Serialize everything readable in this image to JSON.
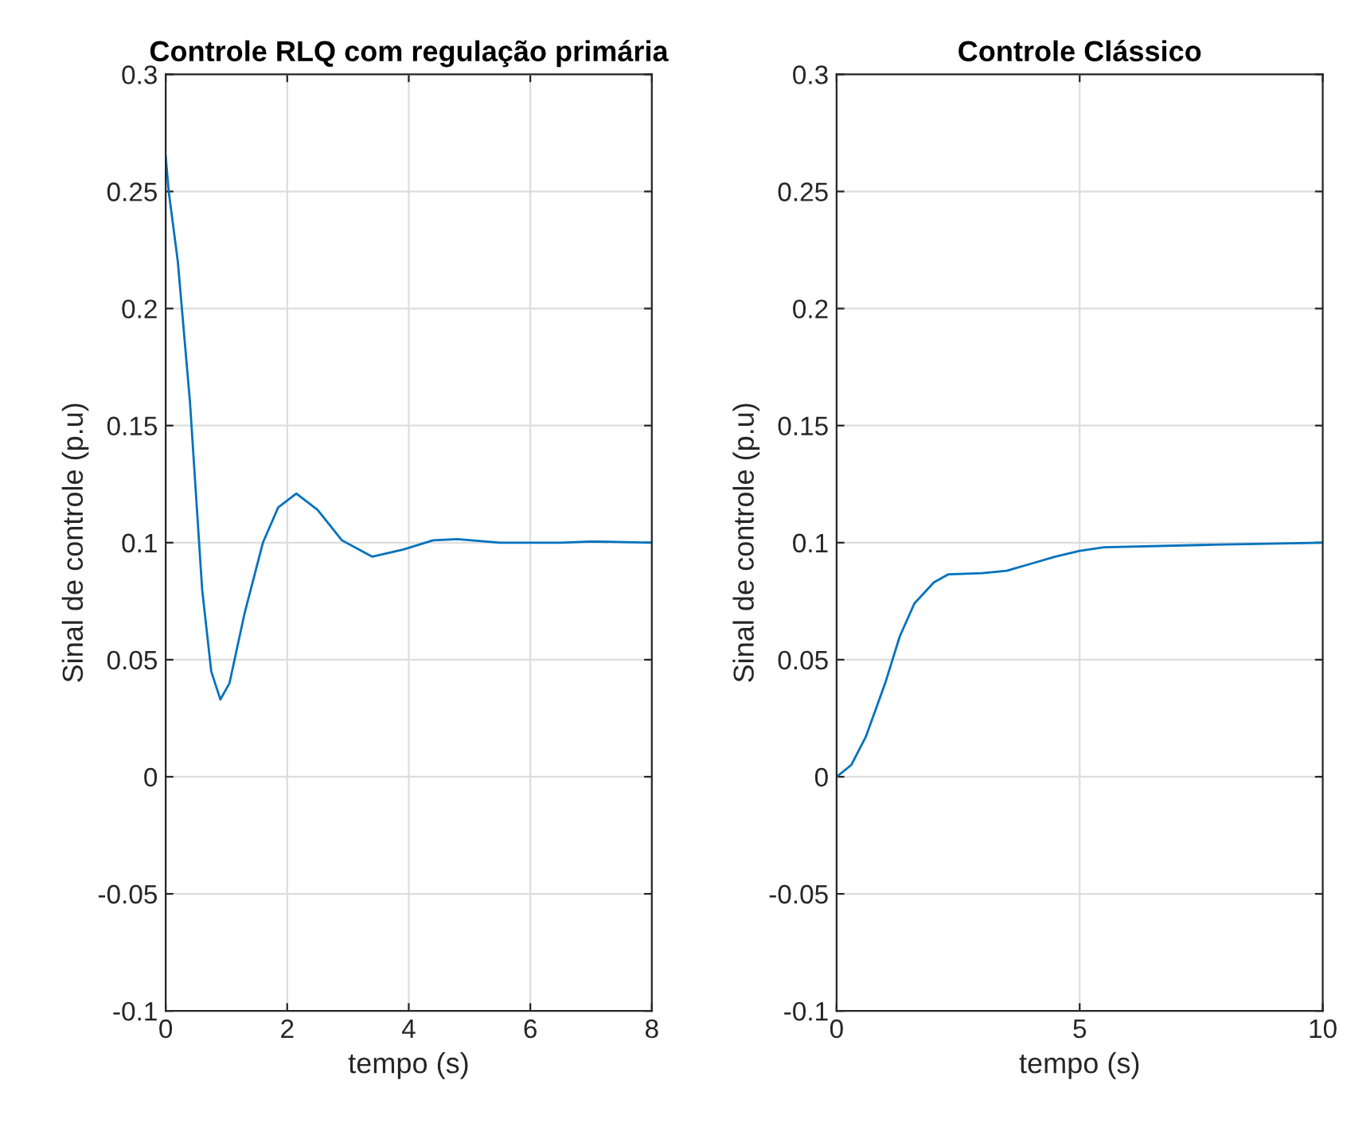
{
  "chart_data": [
    {
      "type": "line",
      "title": "Controle RLQ com regulação primária",
      "xlabel": "tempo (s)",
      "ylabel": "Sinal de controle (p.u)",
      "xlim": [
        0,
        8
      ],
      "xticks": [
        0,
        2,
        4,
        6,
        8
      ],
      "ylim": [
        -0.1,
        0.3
      ],
      "yticks": [
        -0.1,
        -0.05,
        0,
        0.05,
        0.1,
        0.15,
        0.2,
        0.25,
        0.3
      ],
      "grid": true,
      "series": [
        {
          "color": "#0072bd",
          "x": [
            0,
            0.05,
            0.2,
            0.4,
            0.6,
            0.75,
            0.9,
            1.05,
            1.3,
            1.6,
            1.85,
            2.15,
            2.5,
            2.9,
            3.4,
            3.9,
            4.4,
            4.8,
            5.5,
            6.5,
            7,
            8
          ],
          "values": [
            0.265,
            0.25,
            0.22,
            0.16,
            0.08,
            0.045,
            0.033,
            0.04,
            0.07,
            0.1,
            0.115,
            0.121,
            0.114,
            0.101,
            0.094,
            0.097,
            0.101,
            0.1015,
            0.1,
            0.1,
            0.1005,
            0.1
          ]
        }
      ]
    },
    {
      "type": "line",
      "title": "Controle Clássico",
      "xlabel": "tempo (s)",
      "ylabel": "Sinal de controle (p.u)",
      "xlim": [
        0,
        10
      ],
      "xticks": [
        0,
        5,
        10
      ],
      "ylim": [
        -0.1,
        0.3
      ],
      "yticks": [
        -0.1,
        -0.05,
        0,
        0.05,
        0.1,
        0.15,
        0.2,
        0.25,
        0.3
      ],
      "grid": true,
      "series": [
        {
          "color": "#0072bd",
          "x": [
            0,
            0.3,
            0.6,
            1,
            1.3,
            1.6,
            2,
            2.3,
            3,
            3.5,
            4,
            4.5,
            5,
            5.5,
            7.5,
            10
          ],
          "values": [
            0,
            0.005,
            0.017,
            0.04,
            0.06,
            0.074,
            0.083,
            0.0865,
            0.087,
            0.088,
            0.091,
            0.094,
            0.0965,
            0.098,
            0.099,
            0.1
          ]
        }
      ]
    }
  ]
}
